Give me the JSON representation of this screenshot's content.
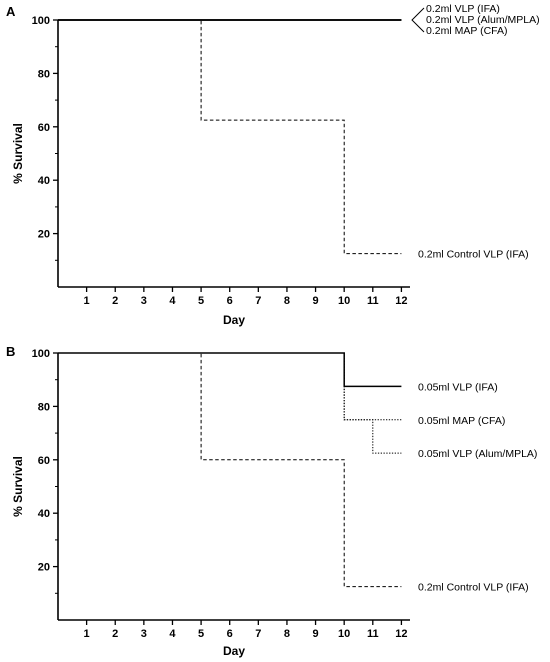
{
  "chart_data": [
    {
      "panel": "A",
      "type": "line",
      "step": true,
      "xlabel": "Day",
      "ylabel": "% Survival",
      "xlim": [
        0,
        12.3
      ],
      "ylim": [
        0,
        100
      ],
      "x_ticks": [
        1,
        2,
        3,
        4,
        5,
        6,
        7,
        8,
        9,
        10,
        11,
        12
      ],
      "y_ticks": [
        20,
        40,
        60,
        80,
        100
      ],
      "y_minor_ticks": [
        10,
        30,
        50,
        70,
        90
      ],
      "legend_bracket": true,
      "series": [
        {
          "name": "0.2ml VLP (IFA)",
          "style": "solid",
          "points": [
            [
              0,
              100
            ],
            [
              12,
              100
            ]
          ]
        },
        {
          "name": "0.2ml VLP (Alum/MPLA)",
          "style": "solid",
          "points": [
            [
              0,
              100
            ],
            [
              12,
              100
            ]
          ]
        },
        {
          "name": "0.2ml MAP (CFA)",
          "style": "solid",
          "points": [
            [
              0,
              100
            ],
            [
              12,
              100
            ]
          ]
        },
        {
          "name": "0.2ml Control VLP (IFA)",
          "style": "dashed",
          "points": [
            [
              0,
              100
            ],
            [
              5,
              100
            ],
            [
              5,
              62.5
            ],
            [
              10,
              62.5
            ],
            [
              10,
              12.5
            ],
            [
              12,
              12.5
            ]
          ]
        }
      ]
    },
    {
      "panel": "B",
      "type": "line",
      "step": true,
      "xlabel": "Day",
      "ylabel": "% Survival",
      "xlim": [
        0,
        12.3
      ],
      "ylim": [
        0,
        100
      ],
      "x_ticks": [
        1,
        2,
        3,
        4,
        5,
        6,
        7,
        8,
        9,
        10,
        11,
        12
      ],
      "y_ticks": [
        20,
        40,
        60,
        80,
        100
      ],
      "y_minor_ticks": [
        10,
        30,
        50,
        70,
        90
      ],
      "legend_bracket": false,
      "series": [
        {
          "name": "0.05ml VLP (IFA)",
          "style": "solid",
          "points": [
            [
              0,
              100
            ],
            [
              10,
              100
            ],
            [
              10,
              87.5
            ],
            [
              12,
              87.5
            ]
          ]
        },
        {
          "name": "0.05ml MAP (CFA)",
          "style": "dotted",
          "points": [
            [
              0,
              100
            ],
            [
              10,
              100
            ],
            [
              10,
              75
            ],
            [
              12,
              75
            ]
          ]
        },
        {
          "name": "0.05ml VLP (Alum/MPLA)",
          "style": "dotted",
          "points": [
            [
              0,
              100
            ],
            [
              10,
              100
            ],
            [
              10,
              75
            ],
            [
              11,
              75
            ],
            [
              11,
              62.5
            ],
            [
              12,
              62.5
            ]
          ]
        },
        {
          "name": "0.2ml Control VLP (IFA)",
          "style": "dashed",
          "points": [
            [
              0,
              100
            ],
            [
              5,
              100
            ],
            [
              5,
              60
            ],
            [
              10,
              60
            ],
            [
              10,
              12.5
            ],
            [
              12,
              12.5
            ]
          ]
        }
      ]
    }
  ]
}
